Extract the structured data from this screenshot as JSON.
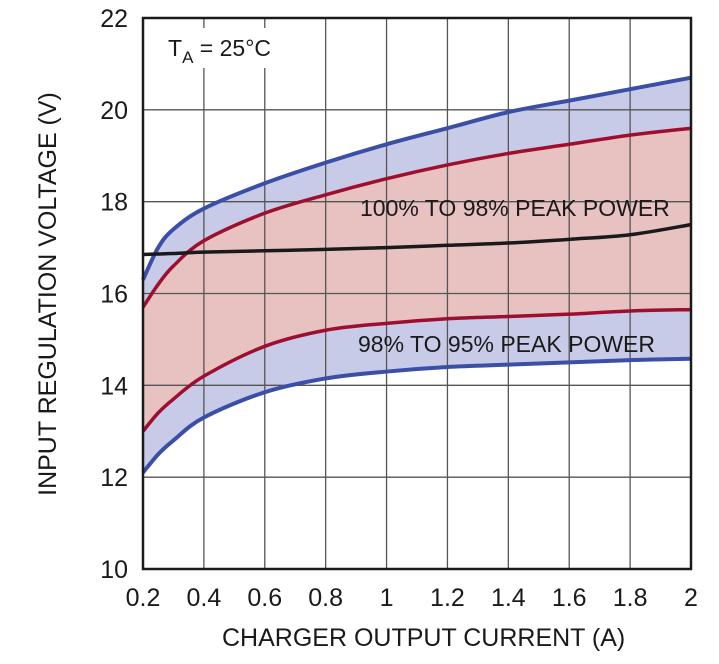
{
  "chart_data": {
    "type": "line",
    "title": "",
    "xlabel": "CHARGER OUTPUT CURRENT (A)",
    "ylabel": "INPUT REGULATION VOLTAGE (V)",
    "xlim": [
      0.2,
      2
    ],
    "ylim": [
      10,
      22
    ],
    "xticks": [
      "0.2",
      "0.4",
      "0.6",
      "0.8",
      "1",
      "1.2",
      "1.4",
      "1.6",
      "1.8",
      "2"
    ],
    "yticks": [
      "10",
      "12",
      "14",
      "16",
      "18",
      "20",
      "22"
    ],
    "grid": true,
    "annotation_condition": {
      "main": "T",
      "sub": "A",
      "rest": " = 25°C"
    },
    "band_labels": [
      "100% TO 98% PEAK POWER",
      "98% TO 95% PEAK POWER"
    ],
    "colors": {
      "blue_line": "#3b4fa6",
      "blue_fill": "#c8cbe8",
      "red_line": "#9e0f2f",
      "red_fill": "#e8c1c1",
      "black_line": "#1a1a1a"
    },
    "x": [
      0.2,
      0.25,
      0.3,
      0.4,
      0.6,
      0.8,
      1.0,
      1.2,
      1.4,
      1.6,
      1.8,
      2.0
    ],
    "series": [
      {
        "id": "upper-95",
        "values": [
          16.3,
          17.0,
          17.4,
          17.85,
          18.4,
          18.85,
          19.25,
          19.6,
          19.95,
          20.2,
          20.45,
          20.7
        ]
      },
      {
        "id": "upper-98",
        "values": [
          15.7,
          16.2,
          16.6,
          17.15,
          17.75,
          18.15,
          18.5,
          18.8,
          19.05,
          19.25,
          19.45,
          19.6
        ]
      },
      {
        "id": "peak",
        "values": [
          16.85,
          16.86,
          16.87,
          16.9,
          16.93,
          16.96,
          17.0,
          17.05,
          17.1,
          17.18,
          17.28,
          17.5
        ]
      },
      {
        "id": "lower-98",
        "values": [
          13.0,
          13.4,
          13.7,
          14.2,
          14.85,
          15.2,
          15.35,
          15.45,
          15.5,
          15.55,
          15.62,
          15.65
        ]
      },
      {
        "id": "lower-95",
        "values": [
          12.1,
          12.5,
          12.8,
          13.3,
          13.85,
          14.15,
          14.3,
          14.4,
          14.45,
          14.5,
          14.55,
          14.58
        ]
      }
    ]
  }
}
